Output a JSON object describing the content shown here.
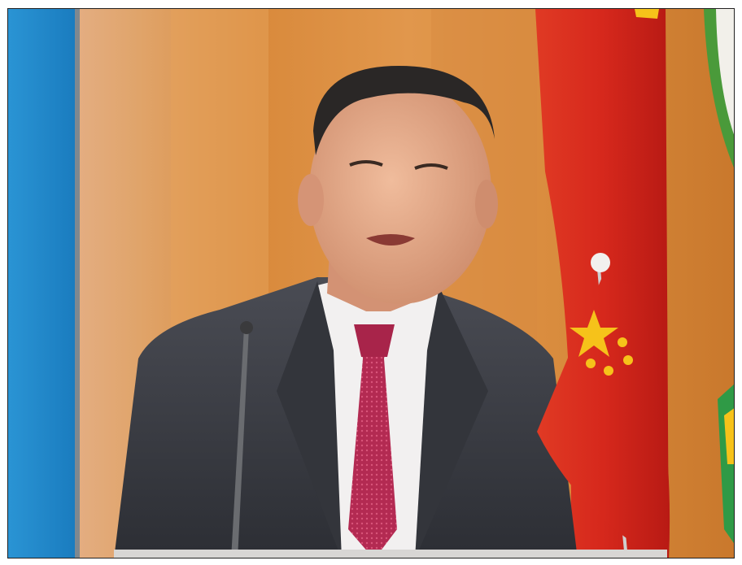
{
  "photo": {
    "subject": "",
    "colors": {
      "background_warm": "#d98c3e",
      "background_orange": "#e39a4a",
      "background_pink": "#e9b39b",
      "blue_flag": "#1f8ccf",
      "red_flag": "#d9241c",
      "yellow_star": "#f6c21a",
      "suit": "#3b3d44",
      "shirt": "#f2f0f0",
      "tie": "#b0284e",
      "skin": "#e0a787",
      "hair": "#2a2726",
      "green_emblem": "#4a9a3a"
    }
  }
}
